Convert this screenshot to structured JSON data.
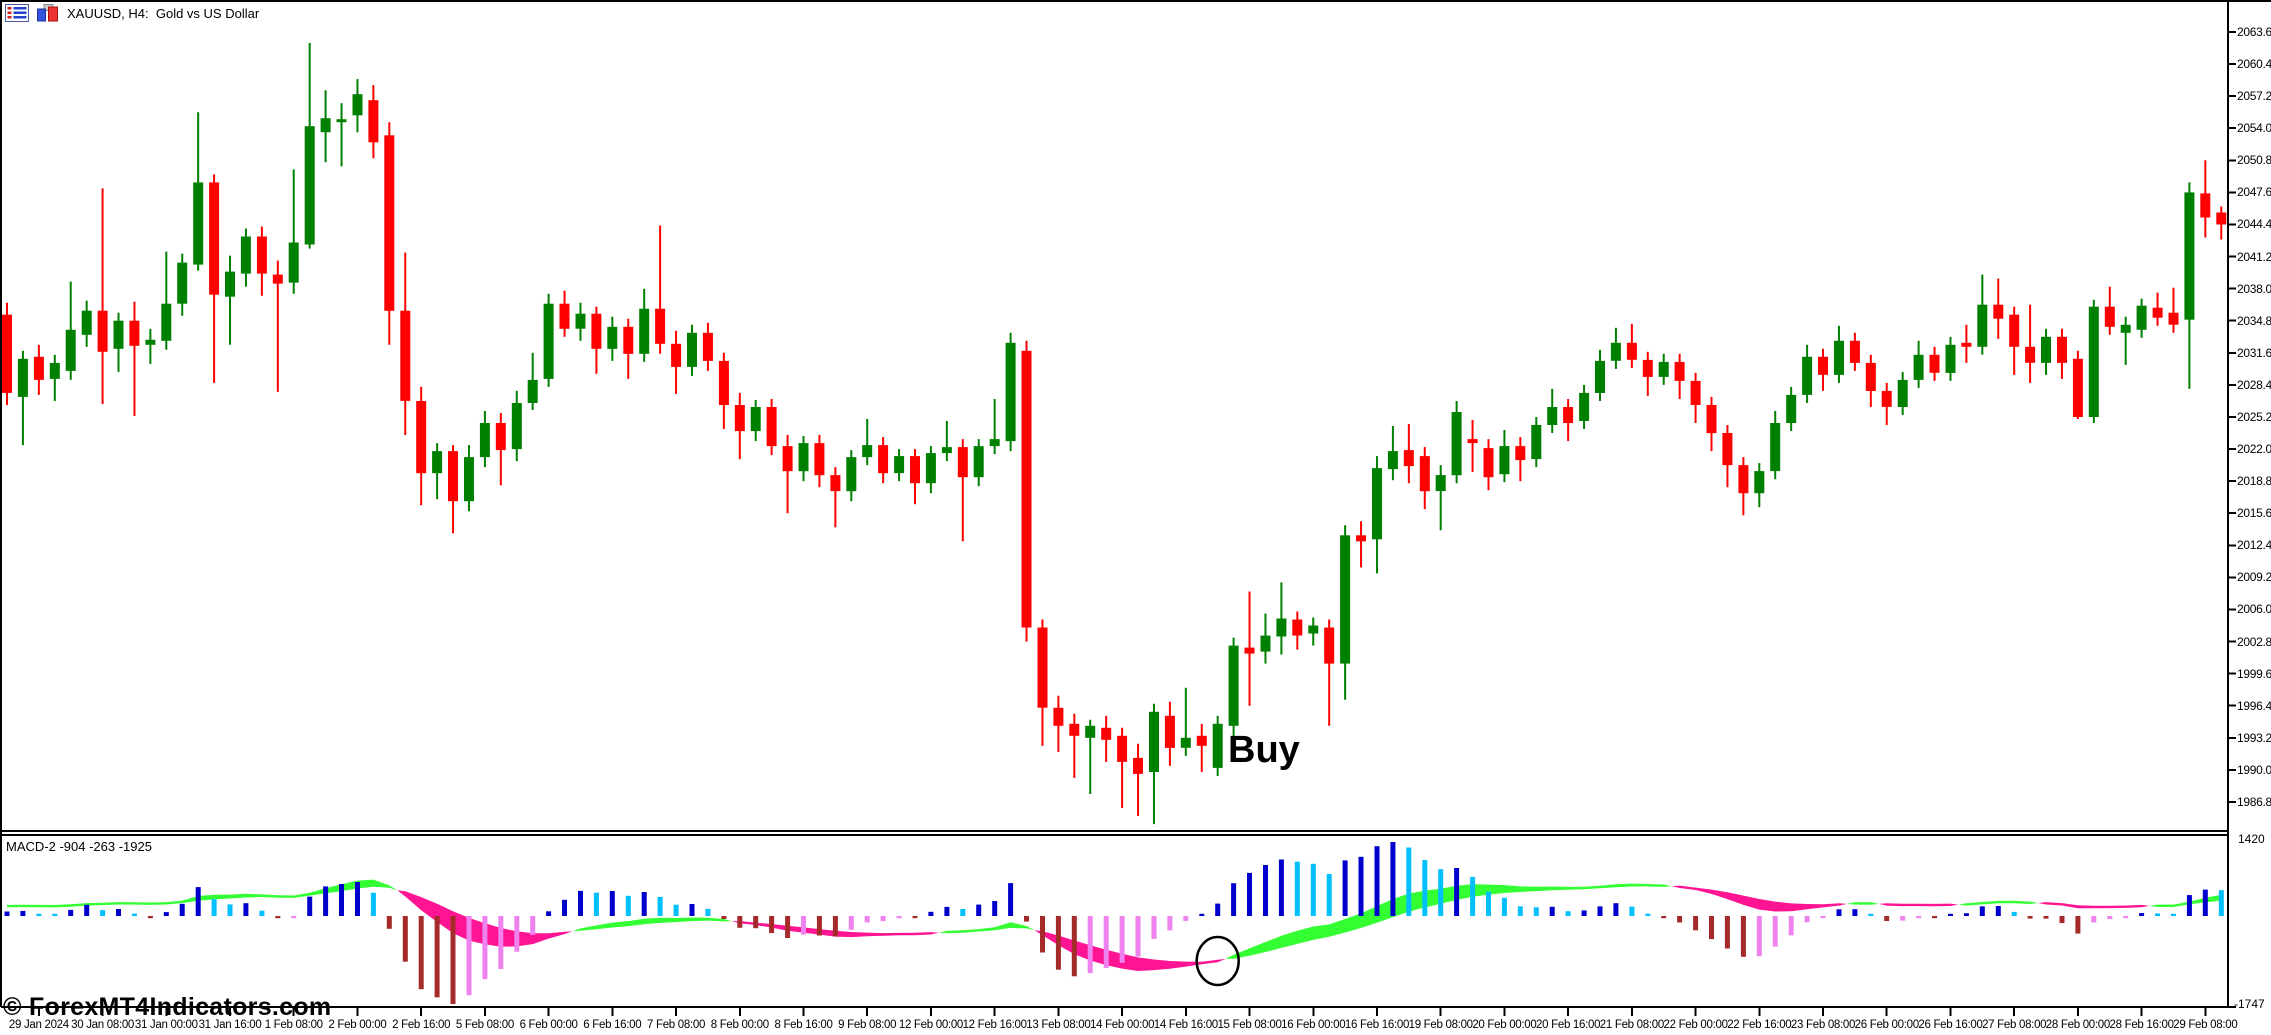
{
  "window": {
    "title": "XAUUSD, H4:  Gold vs US Dollar",
    "icon1": "charts-grid-icon",
    "icon2": "bar-chart-icon"
  },
  "watermark": "© ForexMT4Indicators.com",
  "annotations": {
    "buy": {
      "text": "Buy",
      "candle_index": 76,
      "price": 1990.0
    },
    "circle": {
      "candle_index": 76
    }
  },
  "indicator": {
    "label": "MACD-2 -904 -263 -1925",
    "scale_top": "1420",
    "scale_bottom": "-1747",
    "params": {
      "fast": 9,
      "slow": 19,
      "signal": 9,
      "ribbon_fast": 3,
      "ribbon_slow": 10,
      "scale": 100
    }
  },
  "price_axis": {
    "labels": [
      "2063.60",
      "2060.40",
      "2057.20",
      "2054.00",
      "2050.80",
      "2047.60",
      "2044.40",
      "2041.20",
      "2038.00",
      "2034.80",
      "2031.60",
      "2028.40",
      "2025.20",
      "2022.00",
      "2018.80",
      "2015.60",
      "2012.40",
      "2009.20",
      "2006.00",
      "2002.80",
      "1999.60",
      "1996.40",
      "1993.20",
      "1990.00",
      "1986.80"
    ]
  },
  "time_axis": {
    "labels": [
      "29 Jan 2024",
      "30 Jan 08:00",
      "31 Jan 00:00",
      "31 Jan 16:00",
      "1 Feb 08:00",
      "2 Feb 00:00",
      "2 Feb 16:00",
      "5 Feb 08:00",
      "6 Feb 00:00",
      "6 Feb 16:00",
      "7 Feb 08:00",
      "8 Feb 00:00",
      "8 Feb 16:00",
      "9 Feb 08:00",
      "12 Feb 00:00",
      "12 Feb 16:00",
      "13 Feb 08:00",
      "14 Feb 00:00",
      "14 Feb 16:00",
      "15 Feb 08:00",
      "16 Feb 00:00",
      "16 Feb 16:00",
      "19 Feb 08:00",
      "20 Feb 00:00",
      "20 Feb 16:00",
      "21 Feb 08:00",
      "22 Feb 00:00",
      "22 Feb 16:00",
      "23 Feb 08:00",
      "26 Feb 00:00",
      "26 Feb 16:00",
      "27 Feb 08:00",
      "28 Feb 00:00",
      "28 Feb 16:00",
      "29 Feb 08:00"
    ],
    "first_candle_index": 2,
    "candles_per_tick": 4
  },
  "colors": {
    "background": "#FFFFFF",
    "frame": "#000000",
    "bull": "#008000",
    "bear": "#FF0000",
    "hist_up_strong": "#0000CD",
    "hist_up_weak": "#00BFFF",
    "hist_down_strong": "#A52A2A",
    "hist_down_weak": "#EE82EE",
    "ribbon_up": "#33FF33",
    "ribbon_down": "#FF1493",
    "text": "#000000"
  },
  "chart_data": {
    "type": "candlestick",
    "symbol": "XAUUSD",
    "timeframe": "H4",
    "title": "XAUUSD, H4: Gold vs US Dollar",
    "ylim": [
      1983.0,
      2065.0
    ],
    "price_step": 3.2,
    "candles": [
      [
        2035.4,
        2036.6,
        2026.4,
        2027.6
      ],
      [
        2027.2,
        2031.8,
        2022.4,
        2031.0
      ],
      [
        2031.2,
        2032.4,
        2027.4,
        2028.9
      ],
      [
        2029.0,
        2031.4,
        2026.8,
        2030.6
      ],
      [
        2029.8,
        2038.7,
        2028.9,
        2033.9
      ],
      [
        2033.4,
        2036.8,
        2032.2,
        2035.8
      ],
      [
        2035.8,
        2048.0,
        2026.5,
        2031.7
      ],
      [
        2032.0,
        2035.6,
        2029.7,
        2034.8
      ],
      [
        2034.8,
        2036.7,
        2025.3,
        2032.3
      ],
      [
        2032.4,
        2034.0,
        2030.5,
        2032.9
      ],
      [
        2032.8,
        2041.7,
        2031.9,
        2036.5
      ],
      [
        2036.5,
        2041.5,
        2035.3,
        2040.6
      ],
      [
        2040.4,
        2055.6,
        2039.8,
        2048.6
      ],
      [
        2048.6,
        2049.4,
        2028.6,
        2037.4
      ],
      [
        2037.2,
        2041.3,
        2032.4,
        2039.7
      ],
      [
        2039.5,
        2044.0,
        2038.2,
        2043.2
      ],
      [
        2043.2,
        2044.2,
        2037.3,
        2039.5
      ],
      [
        2039.4,
        2040.8,
        2027.7,
        2038.5
      ],
      [
        2038.6,
        2049.9,
        2037.5,
        2042.6
      ],
      [
        2042.4,
        2062.5,
        2042.0,
        2054.2
      ],
      [
        2053.6,
        2057.8,
        2050.6,
        2055.0
      ],
      [
        2054.6,
        2056.5,
        2050.2,
        2054.9
      ],
      [
        2055.3,
        2058.9,
        2053.6,
        2057.4
      ],
      [
        2056.8,
        2058.3,
        2051.0,
        2052.6
      ],
      [
        2053.3,
        2054.6,
        2032.4,
        2035.8
      ],
      [
        2035.8,
        2041.6,
        2023.4,
        2026.8
      ],
      [
        2026.8,
        2028.2,
        2016.4,
        2019.6
      ],
      [
        2019.6,
        2022.6,
        2017.0,
        2021.8
      ],
      [
        2021.8,
        2022.4,
        2013.6,
        2016.8
      ],
      [
        2016.8,
        2022.4,
        2015.8,
        2021.2
      ],
      [
        2021.2,
        2025.8,
        2020.2,
        2024.6
      ],
      [
        2024.6,
        2025.6,
        2018.4,
        2021.9
      ],
      [
        2022.0,
        2027.8,
        2020.8,
        2026.6
      ],
      [
        2026.6,
        2031.6,
        2025.9,
        2028.9
      ],
      [
        2029.0,
        2037.5,
        2028.2,
        2036.5
      ],
      [
        2036.5,
        2037.8,
        2033.2,
        2034.0
      ],
      [
        2034.0,
        2036.6,
        2032.8,
        2035.5
      ],
      [
        2035.5,
        2036.2,
        2029.5,
        2032.0
      ],
      [
        2032.0,
        2035.2,
        2030.8,
        2034.2
      ],
      [
        2034.2,
        2035.0,
        2029.0,
        2031.5
      ],
      [
        2031.5,
        2038.0,
        2030.7,
        2036.0
      ],
      [
        2036.0,
        2044.3,
        2031.5,
        2032.5
      ],
      [
        2032.5,
        2033.8,
        2027.5,
        2030.2
      ],
      [
        2030.2,
        2034.4,
        2029.3,
        2033.6
      ],
      [
        2033.6,
        2034.6,
        2029.8,
        2030.8
      ],
      [
        2030.8,
        2031.6,
        2024.0,
        2026.4
      ],
      [
        2026.4,
        2027.6,
        2021.0,
        2023.8
      ],
      [
        2023.8,
        2026.9,
        2022.8,
        2026.2
      ],
      [
        2026.2,
        2027.0,
        2021.4,
        2022.3
      ],
      [
        2022.3,
        2023.4,
        2015.6,
        2019.8
      ],
      [
        2019.8,
        2023.3,
        2018.8,
        2022.6
      ],
      [
        2022.6,
        2023.4,
        2018.2,
        2019.4
      ],
      [
        2019.4,
        2020.2,
        2014.2,
        2017.8
      ],
      [
        2017.8,
        2021.9,
        2016.8,
        2021.2
      ],
      [
        2021.2,
        2025.0,
        2020.4,
        2022.4
      ],
      [
        2022.4,
        2023.2,
        2018.6,
        2019.6
      ],
      [
        2019.6,
        2022.0,
        2018.8,
        2021.3
      ],
      [
        2021.3,
        2022.0,
        2016.5,
        2018.6
      ],
      [
        2018.6,
        2022.3,
        2017.6,
        2021.6
      ],
      [
        2021.6,
        2024.8,
        2020.8,
        2022.2
      ],
      [
        2022.2,
        2023.0,
        2012.8,
        2019.2
      ],
      [
        2019.2,
        2023.0,
        2018.3,
        2022.3
      ],
      [
        2022.3,
        2027.0,
        2021.5,
        2023.0
      ],
      [
        2022.8,
        2033.6,
        2021.8,
        2032.6
      ],
      [
        2031.8,
        2032.8,
        2002.8,
        2004.2
      ],
      [
        2004.2,
        2005.0,
        1992.4,
        1996.2
      ],
      [
        1996.2,
        1997.4,
        1991.8,
        1994.4
      ],
      [
        1994.6,
        1995.6,
        1989.2,
        1993.4
      ],
      [
        1993.2,
        1995.0,
        1987.6,
        1994.4
      ],
      [
        1994.2,
        1995.4,
        1990.8,
        1993.0
      ],
      [
        1993.4,
        1994.2,
        1986.2,
        1990.8
      ],
      [
        1991.2,
        1992.6,
        1985.4,
        1989.6
      ],
      [
        1989.8,
        1996.6,
        1984.6,
        1995.8
      ],
      [
        1995.4,
        1996.8,
        1990.4,
        1992.2
      ],
      [
        1992.2,
        1998.2,
        1991.4,
        1993.2
      ],
      [
        1993.4,
        1994.6,
        1989.8,
        1992.4
      ],
      [
        1990.2,
        1995.4,
        1989.4,
        1994.6
      ],
      [
        1994.4,
        2003.2,
        1992.8,
        2002.4
      ],
      [
        2002.2,
        2007.8,
        1996.4,
        2001.6
      ],
      [
        2001.8,
        2005.6,
        2000.6,
        2003.4
      ],
      [
        2003.3,
        2008.7,
        2001.5,
        2005.1
      ],
      [
        2005.0,
        2005.8,
        2002.0,
        2003.4
      ],
      [
        2003.6,
        2005.2,
        2002.4,
        2004.4
      ],
      [
        2004.2,
        2005.0,
        1994.4,
        2000.6
      ],
      [
        2000.6,
        2014.4,
        1997.0,
        2013.4
      ],
      [
        2013.4,
        2014.8,
        2010.2,
        2012.8
      ],
      [
        2013.0,
        2021.3,
        2009.6,
        2020.1
      ],
      [
        2020.0,
        2024.3,
        2018.9,
        2021.8
      ],
      [
        2021.9,
        2024.5,
        2018.6,
        2020.3
      ],
      [
        2021.3,
        2022.2,
        2016.0,
        2017.8
      ],
      [
        2017.8,
        2020.4,
        2013.9,
        2019.4
      ],
      [
        2019.4,
        2026.8,
        2018.6,
        2025.7
      ],
      [
        2023.0,
        2024.9,
        2019.7,
        2022.6
      ],
      [
        2022.1,
        2023.0,
        2017.9,
        2019.2
      ],
      [
        2019.5,
        2023.9,
        2018.7,
        2022.3
      ],
      [
        2022.3,
        2023.2,
        2018.8,
        2020.9
      ],
      [
        2021.0,
        2025.2,
        2020.2,
        2024.4
      ],
      [
        2024.4,
        2028.0,
        2023.6,
        2026.2
      ],
      [
        2026.2,
        2027.0,
        2022.8,
        2024.6
      ],
      [
        2024.8,
        2028.4,
        2024.0,
        2027.6
      ],
      [
        2027.6,
        2031.9,
        2026.8,
        2030.8
      ],
      [
        2030.8,
        2034.1,
        2030.0,
        2032.6
      ],
      [
        2032.6,
        2034.5,
        2030.1,
        2030.9
      ],
      [
        2030.9,
        2031.7,
        2027.3,
        2029.2
      ],
      [
        2029.2,
        2031.5,
        2028.4,
        2030.7
      ],
      [
        2030.7,
        2031.5,
        2027.0,
        2028.8
      ],
      [
        2028.8,
        2029.6,
        2024.6,
        2026.4
      ],
      [
        2026.4,
        2027.2,
        2021.8,
        2023.6
      ],
      [
        2023.6,
        2024.4,
        2018.2,
        2020.4
      ],
      [
        2020.4,
        2021.2,
        2015.4,
        2017.6
      ],
      [
        2017.6,
        2020.6,
        2016.2,
        2019.8
      ],
      [
        2019.8,
        2025.8,
        2019.0,
        2024.6
      ],
      [
        2024.6,
        2028.2,
        2023.8,
        2027.4
      ],
      [
        2027.4,
        2032.4,
        2026.6,
        2031.2
      ],
      [
        2031.2,
        2032.0,
        2027.8,
        2029.4
      ],
      [
        2029.4,
        2034.3,
        2028.6,
        2032.8
      ],
      [
        2032.8,
        2033.6,
        2029.8,
        2030.6
      ],
      [
        2030.6,
        2031.4,
        2026.2,
        2027.8
      ],
      [
        2027.8,
        2028.6,
        2024.4,
        2026.2
      ],
      [
        2026.2,
        2029.7,
        2025.4,
        2028.9
      ],
      [
        2028.9,
        2032.8,
        2028.1,
        2031.4
      ],
      [
        2031.4,
        2032.2,
        2028.8,
        2029.6
      ],
      [
        2029.6,
        2033.2,
        2028.8,
        2032.4
      ],
      [
        2032.6,
        2034.4,
        2030.6,
        2032.2
      ],
      [
        2032.2,
        2039.4,
        2031.4,
        2036.4
      ],
      [
        2036.4,
        2039.0,
        2033.0,
        2035.0
      ],
      [
        2035.4,
        2036.2,
        2029.4,
        2032.2
      ],
      [
        2032.2,
        2036.4,
        2028.6,
        2030.6
      ],
      [
        2030.6,
        2034.0,
        2029.4,
        2033.2
      ],
      [
        2033.2,
        2034.0,
        2029.0,
        2030.6
      ],
      [
        2031.0,
        2031.8,
        2025.0,
        2025.2
      ],
      [
        2025.2,
        2036.9,
        2024.6,
        2036.2
      ],
      [
        2036.2,
        2038.2,
        2033.4,
        2034.2
      ],
      [
        2033.6,
        2035.2,
        2030.4,
        2034.4
      ],
      [
        2033.9,
        2037.0,
        2033.1,
        2036.3
      ],
      [
        2036.1,
        2037.6,
        2034.3,
        2035.1
      ],
      [
        2035.6,
        2038.1,
        2033.6,
        2034.4
      ],
      [
        2034.9,
        2048.6,
        2028.0,
        2047.6
      ],
      [
        2047.5,
        2050.8,
        2043.1,
        2045.1
      ],
      [
        2045.6,
        2046.2,
        2042.9,
        2044.4
      ]
    ]
  }
}
